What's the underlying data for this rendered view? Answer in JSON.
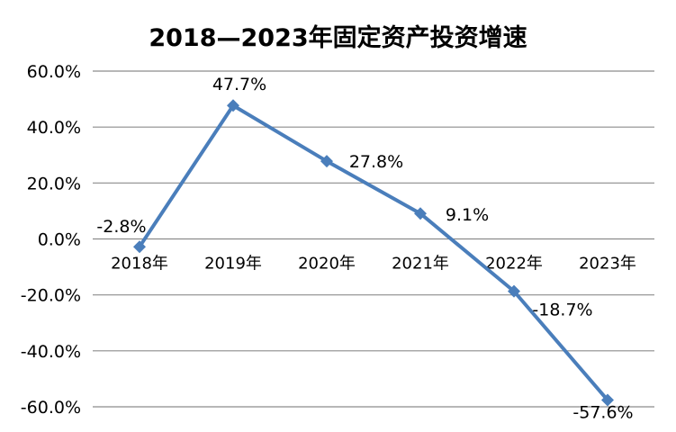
{
  "chart_data": {
    "type": "line",
    "title": "2018—2023年固定资产投资增速",
    "xlabel": "",
    "ylabel": "",
    "categories": [
      "2018年",
      "2019年",
      "2020年",
      "2021年",
      "2022年",
      "2023年"
    ],
    "series": [
      {
        "values": [
          -2.8,
          47.7,
          27.8,
          9.1,
          -18.7,
          -57.6
        ],
        "labels": [
          "-2.8%",
          "47.7%",
          "27.8%",
          "9.1%",
          "-18.7%",
          "-57.6%"
        ]
      }
    ],
    "ylim": [
      -60,
      60
    ],
    "yticks": [
      60,
      40,
      20,
      0,
      -20,
      -40,
      -60
    ],
    "ytick_labels": [
      "60.0%",
      "40.0%",
      "20.0%",
      "0.0%",
      "-20.0%",
      "-40.0%",
      "-60.0%"
    ],
    "grid": true,
    "legend": "none",
    "line_color": "#4a7ebb",
    "grid_color": "#8c8c8c"
  }
}
